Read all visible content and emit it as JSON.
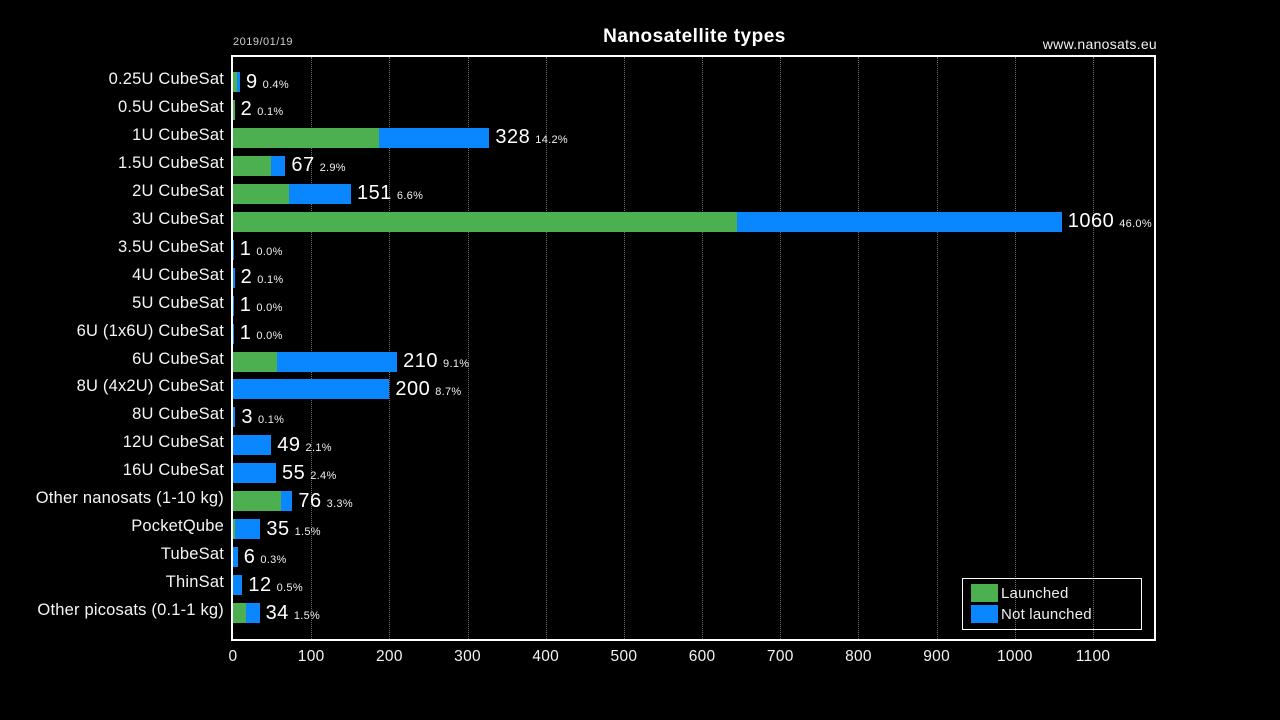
{
  "header": {
    "date": "2019/01/19",
    "title": "Nanosatellite types",
    "website": "www.nanosats.eu"
  },
  "colors": {
    "launched": "#4caf50",
    "not_launched": "#0a86ff",
    "background": "#000000",
    "frame_border": "#ffffff"
  },
  "legend": {
    "items": [
      {
        "label": "Launched",
        "color": "#4caf50"
      },
      {
        "label": "Not launched",
        "color": "#0a86ff"
      }
    ]
  },
  "chart_data": {
    "type": "bar",
    "orientation": "horizontal",
    "stacked": true,
    "title": "Nanosatellite types",
    "grid": "vertical-dotted",
    "legend_position": "bottom-right",
    "categories": [
      "0.25U CubeSat",
      "0.5U CubeSat",
      "1U CubeSat",
      "1.5U CubeSat",
      "2U CubeSat",
      "3U CubeSat",
      "3.5U CubeSat",
      "4U CubeSat",
      "5U CubeSat",
      "6U (1x6U) CubeSat",
      "6U CubeSat",
      "8U (4x2U) CubeSat",
      "8U CubeSat",
      "12U CubeSat",
      "16U CubeSat",
      "Other nanosats (1-10 kg)",
      "PocketQube",
      "TubeSat",
      "ThinSat",
      "Other picosats (0.1-1 kg)"
    ],
    "series": [
      {
        "name": "Launched",
        "color": "#4caf50",
        "values": [
          5,
          2,
          187,
          49,
          72,
          645,
          0,
          0,
          0,
          0,
          56,
          0,
          0,
          0,
          0,
          62,
          3,
          0,
          0,
          17
        ]
      },
      {
        "name": "Not launched",
        "color": "#0a86ff",
        "values": [
          4,
          0,
          141,
          18,
          79,
          415,
          1,
          2,
          1,
          1,
          154,
          200,
          3,
          49,
          55,
          14,
          32,
          6,
          12,
          17
        ]
      }
    ],
    "totals": [
      9,
      2,
      328,
      67,
      151,
      1060,
      1,
      2,
      1,
      1,
      210,
      200,
      3,
      49,
      55,
      76,
      35,
      6,
      12,
      34
    ],
    "percent_labels": [
      "0.4%",
      "0.1%",
      "14.2%",
      "2.9%",
      "6.6%",
      "46.0%",
      "0.0%",
      "0.1%",
      "0.0%",
      "0.0%",
      "9.1%",
      "8.7%",
      "0.1%",
      "2.1%",
      "2.4%",
      "3.3%",
      "1.5%",
      "0.3%",
      "0.5%",
      "1.5%"
    ],
    "x_ticks": [
      "0",
      "100",
      "200",
      "300",
      "400",
      "500",
      "600",
      "700",
      "800",
      "900",
      "1000",
      "1100"
    ],
    "xlim": [
      0,
      1178
    ]
  }
}
